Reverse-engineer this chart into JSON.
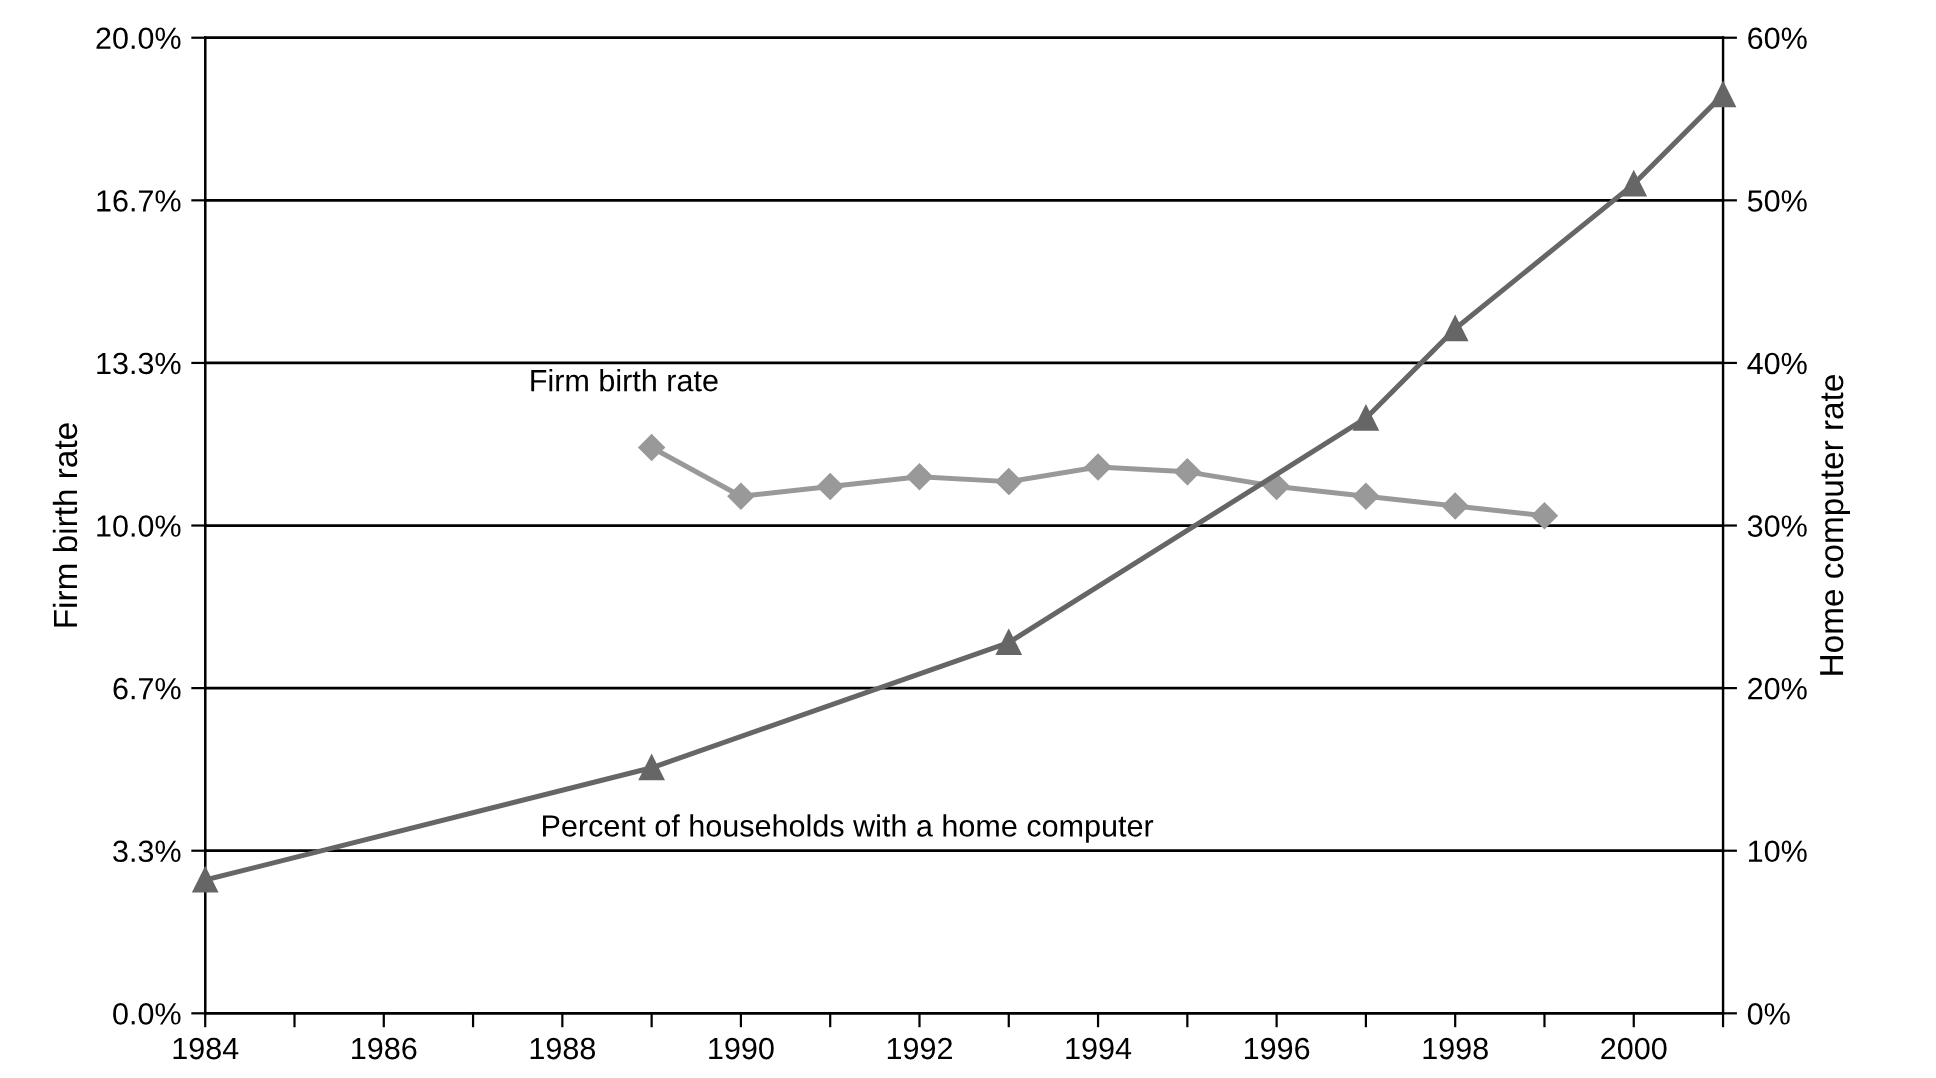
{
  "chart_data": {
    "type": "line",
    "xlabel": null,
    "ylabel": "Firm birth rate",
    "y2label": "Home computer rate",
    "series": [
      {
        "name": "Firm birth rate",
        "color": "#999999",
        "marker": "diamond",
        "x": [
          1989,
          1990,
          1991,
          1992,
          1993,
          1994,
          1995,
          1996,
          1997,
          1998,
          1999
        ],
        "values": [
          11.6,
          10.6,
          10.8,
          11.0,
          10.9,
          11.2,
          11.1,
          10.8,
          10.6,
          10.4,
          10.2
        ]
      },
      {
        "name": "Percent of households with a home computer",
        "color": "#666666",
        "marker": "triangle",
        "axis": "y2",
        "x": [
          1984,
          1989,
          1993,
          1997,
          1998,
          2000,
          2001
        ],
        "values": [
          8.2,
          15.1,
          22.8,
          36.6,
          42.1,
          51.0,
          56.5
        ]
      }
    ],
    "xlim": [
      1984,
      2001
    ],
    "xticks": [
      1984,
      {
        "value": 1985,
        "label": null
      },
      1986,
      {
        "value": 1987,
        "label": null
      },
      1988,
      {
        "value": 1989,
        "label": null
      },
      1990,
      {
        "value": 1991,
        "label": null
      },
      1992,
      {
        "value": 1993,
        "label": null
      },
      1994,
      {
        "value": 1995,
        "label": null
      },
      1996,
      {
        "value": 1997,
        "label": null
      },
      1998,
      {
        "value": 1999,
        "label": null
      },
      2000,
      {
        "value": 2001,
        "label": null
      }
    ],
    "ylim": [
      0,
      20
    ],
    "yticks": [
      {
        "value": 0,
        "label": "0.0%"
      },
      {
        "value": 3.3333,
        "label": "3.3%"
      },
      {
        "value": 6.6667,
        "label": "6.7%"
      },
      {
        "value": 10,
        "label": "10.0%"
      },
      {
        "value": 13.3333,
        "label": "13.3%"
      },
      {
        "value": 16.6667,
        "label": "16.7%"
      },
      {
        "value": 20,
        "label": "20.0%"
      }
    ],
    "y2lim": [
      0,
      60
    ],
    "y2ticks": [
      {
        "value": 0,
        "label": "0%"
      },
      {
        "value": 10,
        "label": "10%"
      },
      {
        "value": 20,
        "label": "20%"
      },
      {
        "value": 30,
        "label": "30%"
      },
      {
        "value": 40,
        "label": "40%"
      },
      {
        "value": 50,
        "label": "50%"
      },
      {
        "value": 60,
        "label": "60%"
      }
    ],
    "grid": "y",
    "legend": false,
    "line_style": "solid"
  }
}
